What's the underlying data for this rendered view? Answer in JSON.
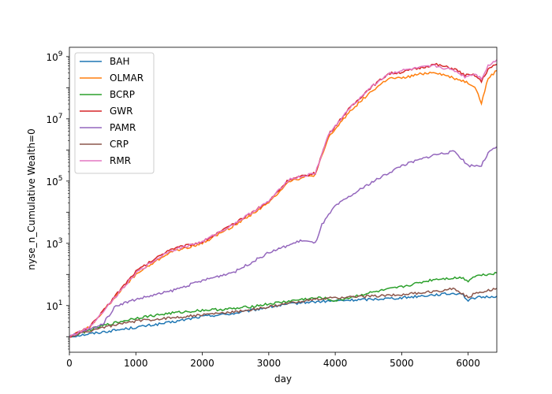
{
  "chart_data": {
    "type": "line",
    "title": "",
    "xlabel": "day",
    "ylabel": "nyse_n_Cumulative Wealth=0",
    "xlim": [
      0,
      6431
    ],
    "ylim_log10": [
      -0.5,
      9.3
    ],
    "yscale": "log",
    "grid": false,
    "legend": "upper-left",
    "x_ticks": [
      0,
      1000,
      2000,
      3000,
      4000,
      5000,
      6000
    ],
    "y_ticks": [
      {
        "base": "10",
        "exp": "1",
        "value": 10
      },
      {
        "base": "10",
        "exp": "3",
        "value": 1000
      },
      {
        "base": "10",
        "exp": "5",
        "value": 100000
      },
      {
        "base": "10",
        "exp": "7",
        "value": 10000000
      },
      {
        "base": "10",
        "exp": "9",
        "value": 1000000000
      }
    ],
    "series": [
      {
        "name": "BAH",
        "color": "#1f77b4",
        "x": [
          0,
          500,
          1000,
          1500,
          2000,
          2500,
          3000,
          3500,
          4000,
          4500,
          5000,
          5500,
          5900,
          6000,
          6100,
          6431
        ],
        "log10_y": [
          0,
          0.15,
          0.3,
          0.45,
          0.65,
          0.75,
          0.95,
          1.1,
          1.15,
          1.2,
          1.25,
          1.35,
          1.4,
          1.15,
          1.25,
          1.3
        ]
      },
      {
        "name": "OLMAR",
        "color": "#ff7f0e",
        "x": [
          0,
          300,
          500,
          700,
          1000,
          1500,
          2000,
          2500,
          3000,
          3300,
          3500,
          3700,
          3900,
          4200,
          4500,
          4800,
          5000,
          5300,
          5500,
          5800,
          5950,
          6100,
          6200,
          6300,
          6431
        ],
        "log10_y": [
          0,
          0.3,
          0.8,
          1.3,
          2.0,
          2.7,
          3.0,
          3.6,
          4.3,
          5.0,
          5.1,
          5.2,
          6.4,
          7.2,
          7.8,
          8.3,
          8.3,
          8.45,
          8.5,
          8.3,
          8.2,
          8.05,
          7.5,
          8.3,
          8.55
        ]
      },
      {
        "name": "BCRP",
        "color": "#2ca02c",
        "x": [
          0,
          500,
          1000,
          1500,
          2000,
          2500,
          3000,
          3500,
          3800,
          4000,
          4500,
          5000,
          5500,
          5900,
          6000,
          6100,
          6431
        ],
        "log10_y": [
          0,
          0.35,
          0.6,
          0.75,
          0.85,
          0.9,
          1.05,
          1.2,
          1.25,
          1.15,
          1.4,
          1.6,
          1.85,
          1.9,
          1.8,
          1.95,
          2.05
        ]
      },
      {
        "name": "GWR",
        "color": "#d62728",
        "x": [
          0,
          300,
          500,
          700,
          1000,
          1500,
          2000,
          2500,
          3000,
          3300,
          3500,
          3700,
          3900,
          4200,
          4500,
          4800,
          5000,
          5300,
          5500,
          5800,
          5950,
          6100,
          6200,
          6300,
          6431
        ],
        "log10_y": [
          0,
          0.3,
          0.8,
          1.35,
          2.1,
          2.8,
          3.05,
          3.65,
          4.35,
          5.05,
          5.15,
          5.25,
          6.5,
          7.3,
          7.95,
          8.45,
          8.5,
          8.65,
          8.75,
          8.6,
          8.4,
          8.4,
          8.2,
          8.6,
          8.75
        ]
      },
      {
        "name": "PAMR",
        "color": "#9467bd",
        "x": [
          0,
          500,
          700,
          1000,
          1500,
          2000,
          2500,
          3000,
          3500,
          3700,
          3800,
          4000,
          4500,
          5000,
          5500,
          5800,
          6000,
          6200,
          6300,
          6431
        ],
        "log10_y": [
          0,
          0.4,
          1.0,
          1.2,
          1.45,
          1.8,
          2.1,
          2.7,
          3.1,
          3.0,
          3.6,
          4.2,
          4.9,
          5.5,
          5.85,
          5.95,
          5.5,
          5.5,
          5.9,
          6.1
        ]
      },
      {
        "name": "CRP",
        "color": "#8c564b",
        "x": [
          0,
          500,
          1000,
          1500,
          2000,
          2500,
          3000,
          3500,
          4000,
          4500,
          5000,
          5500,
          5800,
          6000,
          6100,
          6431
        ],
        "log10_y": [
          0,
          0.3,
          0.5,
          0.6,
          0.7,
          0.8,
          0.95,
          1.15,
          1.25,
          1.3,
          1.35,
          1.45,
          1.55,
          1.25,
          1.4,
          1.55
        ]
      },
      {
        "name": "RMR",
        "color": "#e377c2",
        "x": [
          0,
          300,
          500,
          700,
          1000,
          1500,
          2000,
          2500,
          3000,
          3300,
          3500,
          3700,
          3900,
          4200,
          4500,
          4800,
          5000,
          5300,
          5500,
          5800,
          5950,
          6100,
          6200,
          6300,
          6431
        ],
        "log10_y": [
          0,
          0.3,
          0.8,
          1.3,
          2.05,
          2.75,
          3.05,
          3.65,
          4.35,
          5.05,
          5.15,
          5.25,
          6.5,
          7.3,
          7.95,
          8.45,
          8.55,
          8.65,
          8.7,
          8.55,
          8.35,
          8.45,
          8.3,
          8.7,
          8.9
        ]
      }
    ]
  }
}
